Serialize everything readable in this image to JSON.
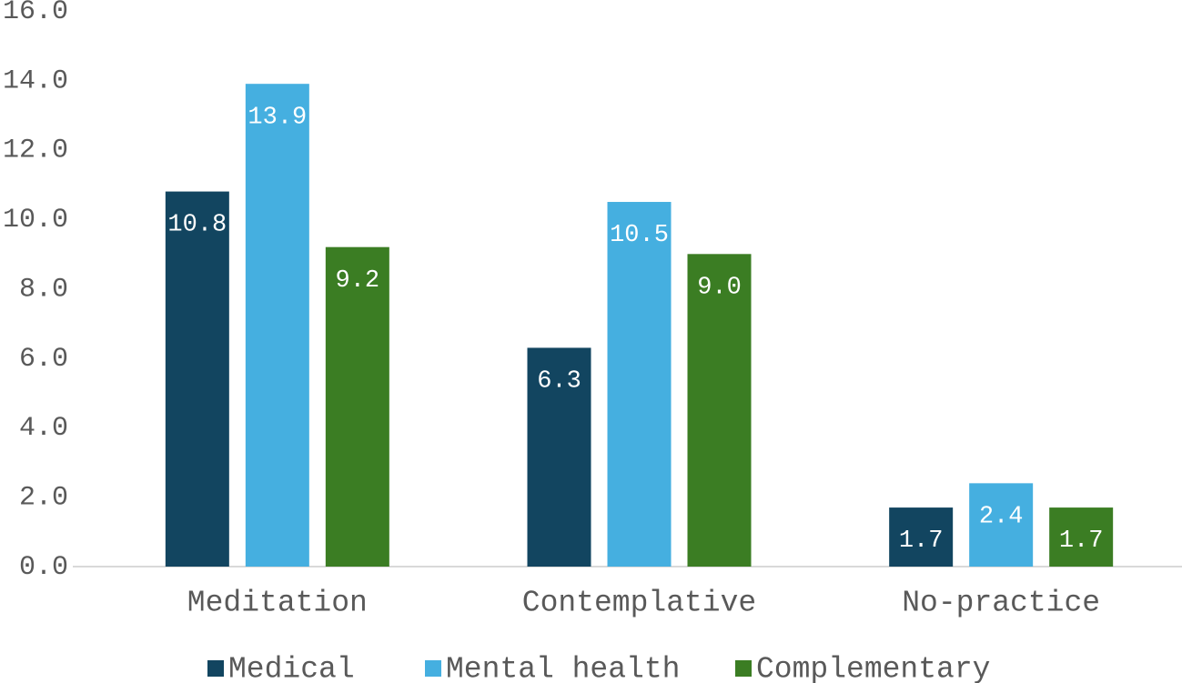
{
  "chart_data": {
    "type": "bar",
    "categories": [
      "Meditation",
      "Contemplative",
      "No-practice"
    ],
    "series": [
      {
        "name": "Medical",
        "color": "#124560",
        "values": [
          10.8,
          6.3,
          1.7
        ],
        "value_labels": [
          "10.8",
          "6.3",
          "1.7"
        ]
      },
      {
        "name": "Mental health",
        "color": "#45afe0",
        "values": [
          13.9,
          10.5,
          2.4
        ],
        "value_labels": [
          "13.9",
          "10.5",
          "2.4"
        ]
      },
      {
        "name": "Complementary",
        "color": "#3b7d23",
        "values": [
          9.2,
          9.0,
          1.7
        ],
        "value_labels": [
          "9.2",
          "9.0",
          "1.7"
        ]
      }
    ],
    "ylim": [
      0,
      16
    ],
    "yticks": [
      {
        "value": 0,
        "label": "0.0"
      },
      {
        "value": 2,
        "label": "2.0"
      },
      {
        "value": 4,
        "label": "4.0"
      },
      {
        "value": 6,
        "label": "6.0"
      },
      {
        "value": 8,
        "label": "8.0"
      },
      {
        "value": 10,
        "label": "10.0"
      },
      {
        "value": 12,
        "label": "12.0"
      },
      {
        "value": 14,
        "label": "14.0"
      },
      {
        "value": 16,
        "label": "16.0"
      }
    ],
    "grid": false,
    "legend": "bottom"
  }
}
